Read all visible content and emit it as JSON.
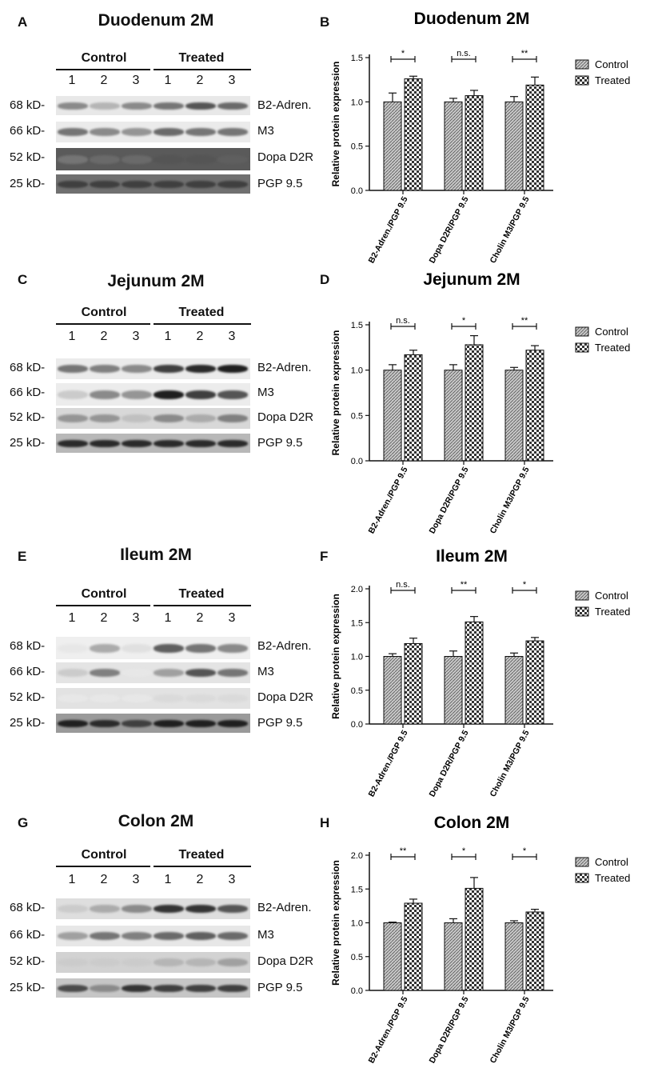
{
  "blot_common": {
    "control_label": "Control",
    "treated_label": "Treated",
    "lanes": [
      "1",
      "2",
      "3",
      "1",
      "2",
      "3"
    ],
    "kd": [
      "68 kD-",
      "66 kD-",
      "52 kD-",
      "25 kD-"
    ],
    "proteins": [
      "B2-Adren.",
      "M3",
      "Dopa D2R",
      "PGP 9.5"
    ]
  },
  "panels": [
    {
      "blot_letter": "A",
      "blot_title": "Duodenum 2M",
      "chart_letter": "B"
    },
    {
      "blot_letter": "C",
      "blot_title": "Jejunum 2M",
      "chart_letter": "D"
    },
    {
      "blot_letter": "E",
      "blot_title": "Ileum 2M",
      "chart_letter": "F"
    },
    {
      "blot_letter": "G",
      "blot_title": "Colon 2M",
      "chart_letter": "H"
    }
  ],
  "legend": {
    "control": "Control",
    "treated": "Treated"
  },
  "colors": {
    "control_fill": "#c8c8c8",
    "treated_fill": "#ffffff",
    "stroke": "#111111"
  },
  "chart_data": [
    {
      "type": "bar",
      "title": "Duodenum 2M",
      "ylabel": "Relative protein expression",
      "ylim": [
        0,
        1.5
      ],
      "yticks": [
        "0.0",
        "0.5",
        "1.0",
        "1.5"
      ],
      "categories": [
        "B2-Adren./PGP 9.5",
        "Dopa D2R/PGP 9.5",
        "Cholin M3/PGP 9.5"
      ],
      "series": [
        {
          "name": "Control",
          "values": [
            1.0,
            1.0,
            1.0
          ],
          "errors": [
            0.1,
            0.04,
            0.06
          ]
        },
        {
          "name": "Treated",
          "values": [
            1.26,
            1.07,
            1.19
          ],
          "errors": [
            0.03,
            0.06,
            0.09
          ]
        }
      ],
      "significance": [
        "*",
        "n.s.",
        "**"
      ],
      "legend_position": "right"
    },
    {
      "type": "bar",
      "title": "Jejunum 2M",
      "ylabel": "Relative protein expression",
      "ylim": [
        0,
        1.5
      ],
      "yticks": [
        "0.0",
        "0.5",
        "1.0",
        "1.5"
      ],
      "categories": [
        "B2-Adren./PGP 9.5",
        "Dopa D2R/PGP 9.5",
        "Cholin M3/PGP 9.5"
      ],
      "series": [
        {
          "name": "Control",
          "values": [
            1.0,
            1.0,
            1.0
          ],
          "errors": [
            0.06,
            0.06,
            0.03
          ]
        },
        {
          "name": "Treated",
          "values": [
            1.17,
            1.28,
            1.22
          ],
          "errors": [
            0.05,
            0.1,
            0.05
          ]
        }
      ],
      "significance": [
        "n.s.",
        "*",
        "**"
      ],
      "legend_position": "right"
    },
    {
      "type": "bar",
      "title": "Ileum 2M",
      "ylabel": "Relative protein expression",
      "ylim": [
        0,
        2.0
      ],
      "yticks": [
        "0.0",
        "0.5",
        "1.0",
        "1.5",
        "2.0"
      ],
      "categories": [
        "B2-Adren./PGP 9.5",
        "Dopa D2R/PGP 9.5",
        "Cholin M3/PGP 9.5"
      ],
      "series": [
        {
          "name": "Control",
          "values": [
            1.0,
            1.0,
            1.0
          ],
          "errors": [
            0.04,
            0.08,
            0.05
          ]
        },
        {
          "name": "Treated",
          "values": [
            1.19,
            1.51,
            1.23
          ],
          "errors": [
            0.08,
            0.08,
            0.05
          ]
        }
      ],
      "significance": [
        "n.s.",
        "**",
        "*"
      ],
      "legend_position": "right"
    },
    {
      "type": "bar",
      "title": "Colon 2M",
      "ylabel": "Relative protein expression",
      "ylim": [
        0,
        2.0
      ],
      "yticks": [
        "0.0",
        "0.5",
        "1.0",
        "1.5",
        "2.0"
      ],
      "categories": [
        "B2-Adren./PGP 9.5",
        "Dopa D2R/PGP 9.5",
        "Cholin M3/PGP 9.5"
      ],
      "series": [
        {
          "name": "Control",
          "values": [
            1.0,
            1.0,
            1.0
          ],
          "errors": [
            0.01,
            0.06,
            0.03
          ]
        },
        {
          "name": "Treated",
          "values": [
            1.29,
            1.51,
            1.16
          ],
          "errors": [
            0.06,
            0.16,
            0.04
          ]
        }
      ],
      "significance": [
        "**",
        "*",
        "*"
      ],
      "legend_position": "right"
    }
  ]
}
